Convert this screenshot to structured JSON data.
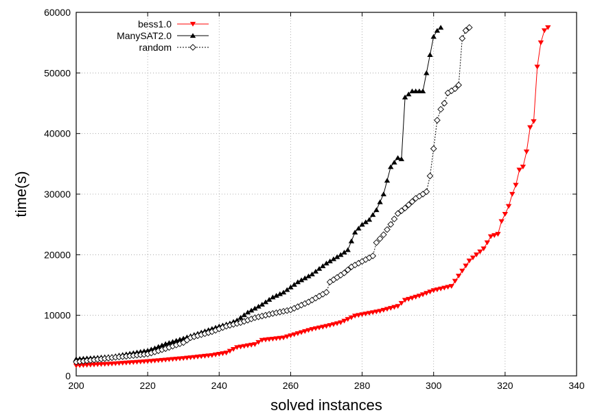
{
  "chart_data": {
    "type": "line",
    "title": "",
    "xlabel": "solved instances",
    "ylabel": "time(s)",
    "xlim": [
      200,
      340
    ],
    "ylim": [
      0,
      60000
    ],
    "xticks": [
      200,
      220,
      240,
      260,
      280,
      300,
      320,
      340
    ],
    "yticks": [
      0,
      10000,
      20000,
      30000,
      40000,
      50000,
      60000
    ],
    "xtick_labels": [
      "200",
      "220",
      "240",
      "260",
      "280",
      "300",
      "320",
      "340"
    ],
    "ytick_labels": [
      "0",
      "10000",
      "20000",
      "30000",
      "40000",
      "50000",
      "60000"
    ],
    "grid": true,
    "legend_position": "top-left",
    "series": [
      {
        "name": "bess1.0",
        "color": "#ff0000",
        "marker": "triangle-down",
        "dash": "solid",
        "points": [
          [
            200,
            1700
          ],
          [
            210,
            2000
          ],
          [
            220,
            2400
          ],
          [
            230,
            2900
          ],
          [
            238,
            3400
          ],
          [
            242,
            3800
          ],
          [
            245,
            4700
          ],
          [
            250,
            5200
          ],
          [
            252,
            5900
          ],
          [
            258,
            6300
          ],
          [
            262,
            7000
          ],
          [
            266,
            7700
          ],
          [
            270,
            8200
          ],
          [
            274,
            8800
          ],
          [
            278,
            9900
          ],
          [
            285,
            10700
          ],
          [
            290,
            11500
          ],
          [
            292,
            12500
          ],
          [
            296,
            13200
          ],
          [
            300,
            14100
          ],
          [
            305,
            14800
          ],
          [
            307,
            16500
          ],
          [
            310,
            19000
          ],
          [
            312,
            20000
          ],
          [
            314,
            21000
          ],
          [
            316,
            23000
          ],
          [
            318,
            23400
          ],
          [
            319,
            25500
          ],
          [
            320,
            26700
          ],
          [
            321,
            28000
          ],
          [
            322,
            30000
          ],
          [
            323,
            31500
          ],
          [
            324,
            34000
          ],
          [
            325,
            34500
          ],
          [
            326,
            37000
          ],
          [
            327,
            41000
          ],
          [
            328,
            42000
          ],
          [
            329,
            51000
          ],
          [
            330,
            55000
          ],
          [
            331,
            57000
          ],
          [
            332,
            57500
          ]
        ]
      },
      {
        "name": "ManySAT2.0",
        "color": "#000000",
        "marker": "triangle-up",
        "dash": "solid",
        "points": [
          [
            200,
            2800
          ],
          [
            210,
            3200
          ],
          [
            220,
            4200
          ],
          [
            222,
            4600
          ],
          [
            225,
            5300
          ],
          [
            230,
            6200
          ],
          [
            235,
            7200
          ],
          [
            240,
            8200
          ],
          [
            243,
            8700
          ],
          [
            245,
            9200
          ],
          [
            248,
            10500
          ],
          [
            252,
            11800
          ],
          [
            255,
            13000
          ],
          [
            258,
            13800
          ],
          [
            262,
            15500
          ],
          [
            266,
            16800
          ],
          [
            270,
            18600
          ],
          [
            274,
            20000
          ],
          [
            276,
            20800
          ],
          [
            278,
            23700
          ],
          [
            280,
            25000
          ],
          [
            282,
            25800
          ],
          [
            284,
            27400
          ],
          [
            286,
            30000
          ],
          [
            288,
            34500
          ],
          [
            290,
            36000
          ],
          [
            291,
            35800
          ],
          [
            292,
            46000
          ],
          [
            294,
            47000
          ],
          [
            297,
            47000
          ],
          [
            299,
            53000
          ],
          [
            300,
            56000
          ],
          [
            301,
            57000
          ],
          [
            302,
            57500
          ]
        ]
      },
      {
        "name": "random",
        "color": "#000000",
        "marker": "diamond-open",
        "dash": "dotted",
        "points": [
          [
            200,
            2300
          ],
          [
            210,
            3000
          ],
          [
            220,
            3600
          ],
          [
            225,
            4500
          ],
          [
            230,
            5500
          ],
          [
            232,
            6300
          ],
          [
            238,
            7300
          ],
          [
            242,
            8200
          ],
          [
            246,
            8800
          ],
          [
            250,
            9600
          ],
          [
            255,
            10300
          ],
          [
            260,
            10900
          ],
          [
            265,
            12200
          ],
          [
            270,
            13800
          ],
          [
            271,
            15500
          ],
          [
            275,
            17000
          ],
          [
            277,
            18000
          ],
          [
            280,
            18900
          ],
          [
            283,
            19800
          ],
          [
            284,
            22000
          ],
          [
            286,
            23300
          ],
          [
            288,
            25000
          ],
          [
            290,
            26800
          ],
          [
            292,
            27700
          ],
          [
            295,
            29300
          ],
          [
            297,
            30000
          ],
          [
            298,
            30400
          ],
          [
            299,
            33000
          ],
          [
            300,
            37500
          ],
          [
            301,
            42200
          ],
          [
            302,
            44000
          ],
          [
            303,
            45000
          ],
          [
            304,
            46700
          ],
          [
            306,
            47400
          ],
          [
            307,
            48000
          ],
          [
            308,
            55700
          ],
          [
            309,
            57000
          ],
          [
            310,
            57500
          ]
        ]
      }
    ]
  }
}
